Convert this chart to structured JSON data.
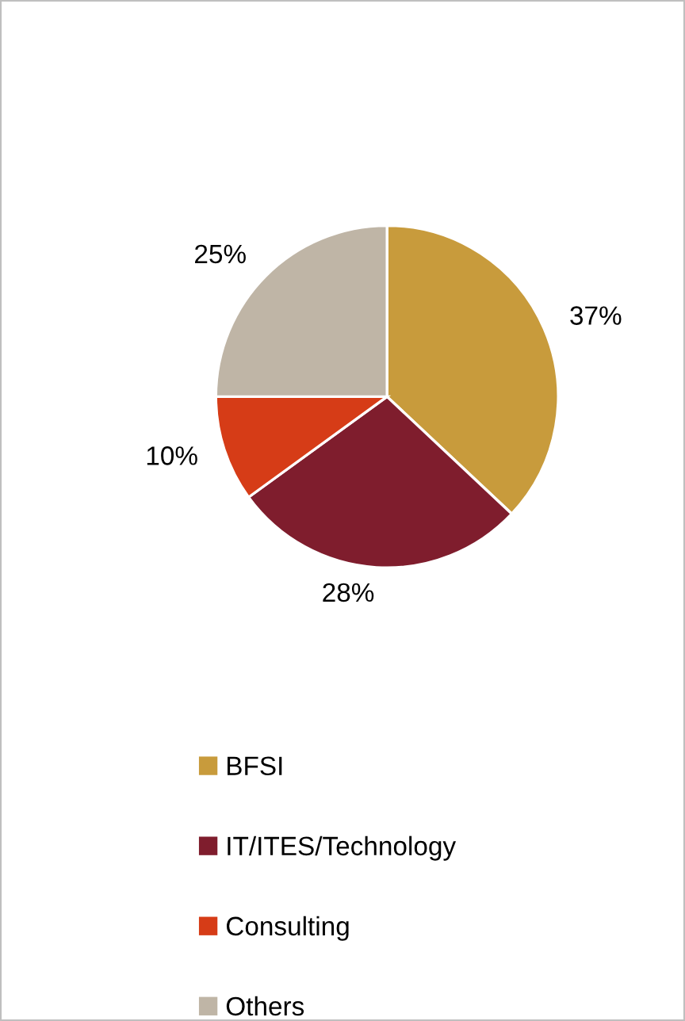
{
  "chart_data": {
    "type": "pie",
    "categories": [
      "BFSI",
      "IT/ITES/Technology",
      "Consulting",
      "Others"
    ],
    "values": [
      37,
      28,
      10,
      25
    ],
    "colors": [
      "#c89b3c",
      "#7f1d2d",
      "#d63c17",
      "#bfb5a6"
    ],
    "value_labels": [
      "37%",
      "28%",
      "10%",
      "25%"
    ],
    "legend": "bottom"
  }
}
